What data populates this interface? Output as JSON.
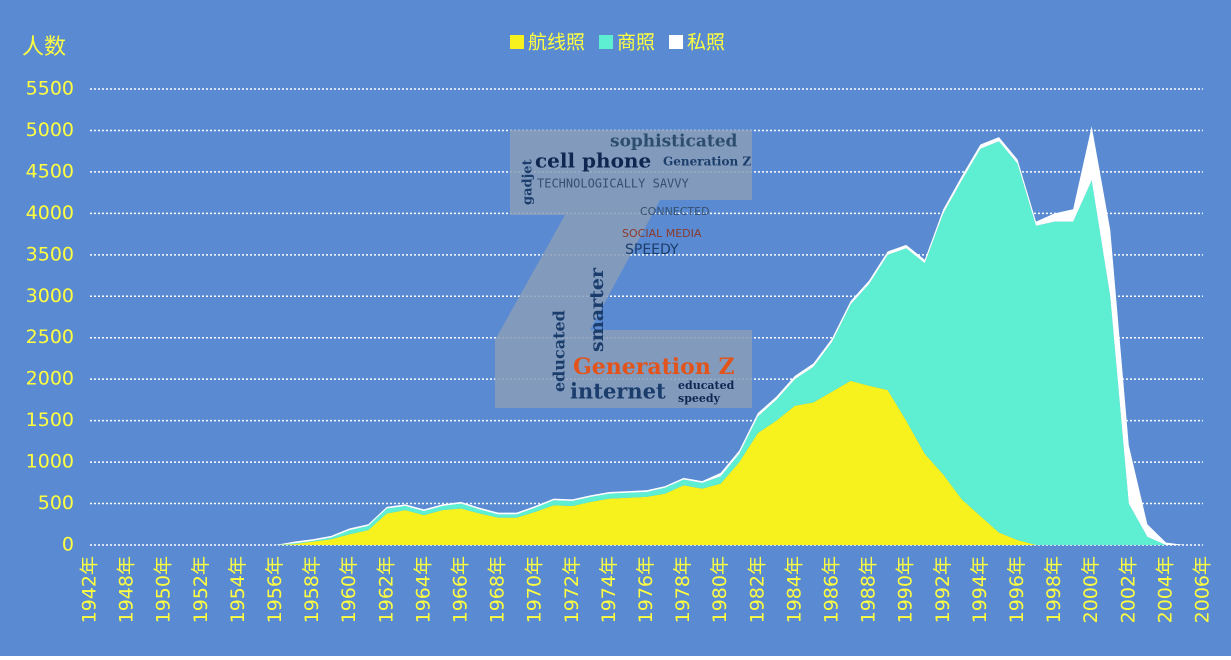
{
  "chart_data": {
    "type": "stacked_area",
    "y_label": "人数",
    "categories": [
      "1942年",
      null,
      "1948年",
      null,
      "1950年",
      null,
      "1952年",
      null,
      "1954年",
      null,
      "1956年",
      null,
      "1958年",
      null,
      "1960年",
      null,
      "1962年",
      null,
      "1964年",
      null,
      "1966年",
      null,
      "1968年",
      null,
      "1970年",
      null,
      "1972年",
      null,
      "1974年",
      null,
      "1976年",
      null,
      "1978年",
      null,
      "1980年",
      null,
      "1982年",
      null,
      "1984年",
      null,
      "1986年",
      null,
      "1988年",
      null,
      "1990年",
      null,
      "1992年",
      null,
      "1994年",
      null,
      "1996年",
      null,
      "1998年",
      null,
      "2000年",
      null,
      "2002年",
      null,
      "2004年",
      null,
      "2006年"
    ],
    "series": [
      {
        "name": "航线照",
        "color": "#f7f21e",
        "values": [
          0,
          0,
          0,
          0,
          0,
          0,
          0,
          0,
          0,
          0,
          0,
          10,
          40,
          70,
          130,
          180,
          380,
          420,
          360,
          420,
          440,
          380,
          330,
          330,
          400,
          480,
          470,
          520,
          560,
          570,
          580,
          620,
          720,
          680,
          740,
          1000,
          1350,
          1500,
          1680,
          1720,
          1850,
          1980,
          1920,
          1870,
          1500,
          1100,
          850,
          550,
          350,
          150,
          60,
          0,
          0,
          0,
          0,
          0,
          0,
          0,
          0,
          0,
          0
        ]
      },
      {
        "name": "商照",
        "color": "#5eefd2",
        "values": [
          0,
          0,
          0,
          0,
          0,
          0,
          0,
          0,
          0,
          0,
          0,
          10,
          10,
          20,
          50,
          50,
          60,
          50,
          50,
          50,
          60,
          50,
          40,
          40,
          50,
          60,
          60,
          60,
          60,
          60,
          60,
          70,
          70,
          70,
          90,
          100,
          200,
          250,
          320,
          430,
          600,
          920,
          1230,
          1630,
          2080,
          2300,
          3150,
          3850,
          4430,
          4720,
          4540,
          3850,
          3900,
          3900,
          4400,
          3000,
          500,
          100,
          0,
          0,
          0
        ]
      },
      {
        "name": "私照",
        "color": "#ffffff",
        "values": [
          0,
          0,
          0,
          0,
          0,
          0,
          0,
          0,
          0,
          0,
          0,
          20,
          20,
          20,
          20,
          20,
          20,
          20,
          20,
          20,
          20,
          20,
          20,
          20,
          20,
          20,
          20,
          20,
          20,
          20,
          20,
          20,
          20,
          20,
          40,
          40,
          40,
          40,
          40,
          40,
          40,
          40,
          40,
          40,
          40,
          40,
          50,
          50,
          50,
          50,
          50,
          50,
          100,
          150,
          650,
          800,
          700,
          150,
          30,
          0,
          0
        ]
      }
    ],
    "ylim": [
      0,
      5500
    ],
    "yticks": [
      0,
      500,
      1000,
      1500,
      2000,
      2500,
      3000,
      3500,
      4000,
      4500,
      5000,
      5500
    ],
    "grid": true
  },
  "word_cloud": [
    "sophisticated",
    "cell phone",
    "Generation Z",
    "TECHNOLOGICALLY SAVVY",
    "gadjet",
    "CONNECTED",
    "SOCIAL MEDIA",
    "SPEEDY",
    "smarter",
    "educated",
    "Generation Z",
    "internet",
    "educated",
    "speedy"
  ]
}
